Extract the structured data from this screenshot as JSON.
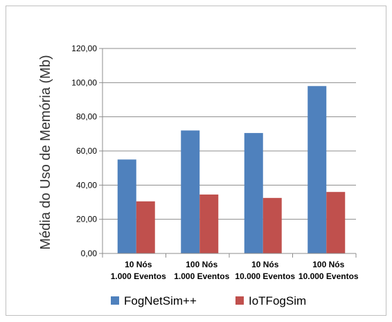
{
  "chart_data": {
    "type": "bar",
    "title": "",
    "xlabel": "",
    "ylabel": "Média do Uso de Memória (Mb)",
    "ylim": [
      0,
      120
    ],
    "yticks": [
      "0,00",
      "20,00",
      "40,00",
      "60,00",
      "80,00",
      "100,00",
      "120,00"
    ],
    "grid": true,
    "legend_position": "bottom",
    "categories": [
      [
        "10 Nós",
        "1.000 Eventos"
      ],
      [
        "100 Nós",
        "1.000 Eventos"
      ],
      [
        "10 Nós",
        "10.000 Eventos"
      ],
      [
        "100 Nós",
        "10.000 Eventos"
      ]
    ],
    "series": [
      {
        "name": "FogNetSim++",
        "color": "#4F81BD",
        "values": [
          55,
          72,
          70.5,
          98
        ]
      },
      {
        "name": "IoTFogSim",
        "color": "#C0504D",
        "values": [
          30.5,
          34.5,
          32.5,
          36
        ]
      }
    ]
  }
}
